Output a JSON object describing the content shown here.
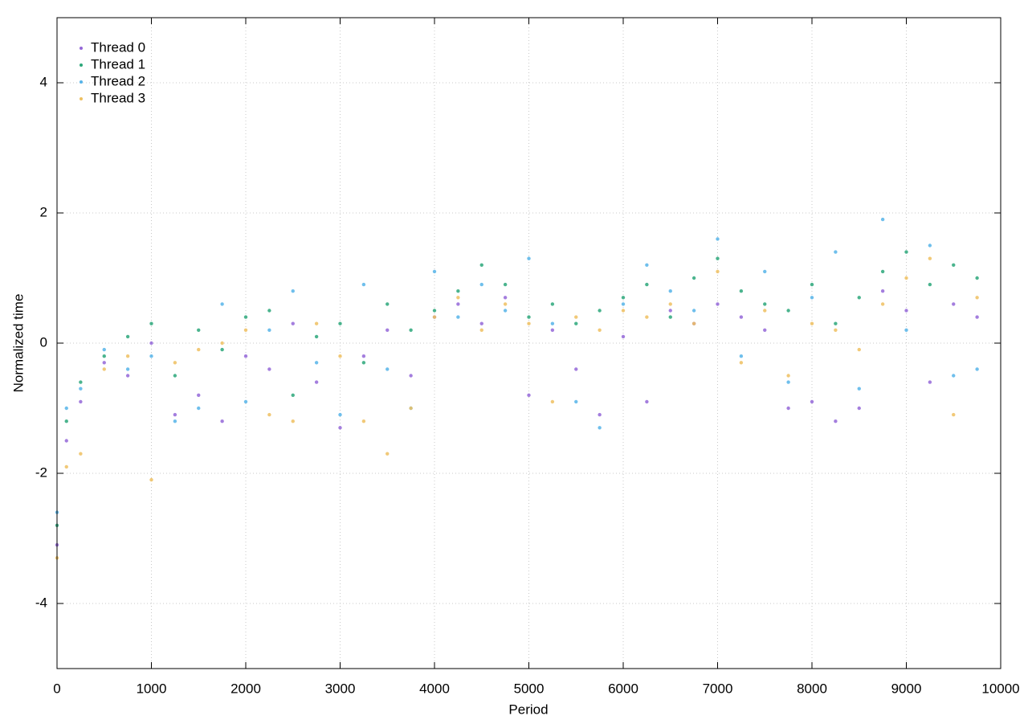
{
  "chart_data": {
    "type": "scatter",
    "x_label": "Period",
    "y_label": "Normalized time",
    "x": [
      0,
      100,
      250,
      500,
      750,
      1000,
      1250,
      1500,
      1750,
      2000,
      2250,
      2500,
      2750,
      3000,
      3250,
      3500,
      3750,
      4000,
      4250,
      4500,
      4750,
      5000,
      5250,
      5500,
      5750,
      6000,
      6250,
      6500,
      6750,
      7000,
      7250,
      7500,
      7750,
      8000,
      8250,
      8500,
      8750,
      9000,
      9250,
      9500,
      9750
    ],
    "series": [
      {
        "name": "Thread 0",
        "color": "#9467d8",
        "values": [
          -3.1,
          -1.5,
          -0.9,
          -0.3,
          -0.5,
          0.0,
          -1.1,
          -0.8,
          -1.2,
          -0.2,
          -0.4,
          0.3,
          -0.6,
          -1.3,
          -0.2,
          0.2,
          -0.5,
          0.4,
          0.6,
          0.3,
          0.7,
          -0.8,
          0.2,
          -0.4,
          -1.1,
          0.1,
          -0.9,
          0.5,
          0.3,
          0.6,
          0.4,
          0.2,
          -1.0,
          -0.9,
          -1.2,
          -1.0,
          0.8,
          0.5,
          -0.6,
          0.6,
          0.4
        ]
      },
      {
        "name": "Thread 1",
        "color": "#2ca77a",
        "values": [
          -2.8,
          -1.2,
          -0.6,
          -0.2,
          0.1,
          0.3,
          -0.5,
          0.2,
          -0.1,
          0.4,
          0.5,
          -0.8,
          0.1,
          0.3,
          -0.3,
          0.6,
          0.2,
          0.5,
          0.8,
          1.2,
          0.9,
          0.4,
          0.6,
          0.3,
          0.5,
          0.7,
          0.9,
          0.4,
          1.0,
          1.3,
          0.8,
          0.6,
          0.5,
          0.9,
          0.3,
          0.7,
          1.1,
          1.4,
          0.9,
          1.2,
          1.0
        ]
      },
      {
        "name": "Thread 2",
        "color": "#56b4e9",
        "values": [
          -2.6,
          -1.0,
          -0.7,
          -0.1,
          -0.4,
          -0.2,
          -1.2,
          -1.0,
          0.6,
          -0.9,
          0.2,
          0.8,
          -0.3,
          -1.1,
          0.9,
          -0.4,
          -1.0,
          1.1,
          0.4,
          0.9,
          0.5,
          1.3,
          0.3,
          -0.9,
          -1.3,
          0.6,
          1.2,
          0.8,
          0.5,
          1.6,
          -0.2,
          1.1,
          -0.6,
          0.7,
          1.4,
          -0.7,
          1.9,
          0.2,
          1.5,
          -0.5,
          -0.4
        ]
      },
      {
        "name": "Thread 3",
        "color": "#eec060",
        "values": [
          -3.3,
          -1.9,
          -1.7,
          -0.4,
          -0.2,
          -2.1,
          -0.3,
          -0.1,
          0.0,
          0.2,
          -1.1,
          -1.2,
          0.3,
          -0.2,
          -1.2,
          -1.7,
          -1.0,
          0.4,
          0.7,
          0.2,
          0.6,
          0.3,
          -0.9,
          0.4,
          0.2,
          0.5,
          0.4,
          0.6,
          0.3,
          1.1,
          -0.3,
          0.5,
          -0.5,
          0.3,
          0.2,
          -0.1,
          0.6,
          1.0,
          1.3,
          -1.1,
          0.7
        ]
      }
    ],
    "xlim": [
      0,
      10000
    ],
    "xticks": [
      0,
      1000,
      2000,
      3000,
      4000,
      5000,
      6000,
      7000,
      8000,
      9000,
      10000
    ],
    "ylim": [
      -5,
      5
    ],
    "yticks": [
      -4,
      -2,
      0,
      2,
      4
    ],
    "grid": true,
    "legend": "top-left"
  }
}
